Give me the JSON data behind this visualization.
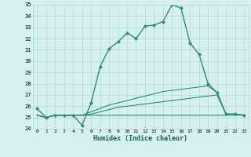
{
  "xlabel": "Humidex (Indice chaleur)",
  "x_hours": [
    0,
    1,
    2,
    3,
    4,
    5,
    6,
    7,
    8,
    9,
    10,
    11,
    12,
    13,
    14,
    15,
    16,
    17,
    18,
    19,
    20,
    21,
    22,
    23
  ],
  "line1": [
    25.8,
    25.0,
    25.2,
    25.2,
    25.2,
    24.3,
    26.3,
    29.5,
    31.1,
    31.7,
    32.5,
    32.0,
    33.1,
    33.2,
    33.5,
    35.0,
    34.7,
    31.6,
    30.6,
    28.0,
    27.2,
    25.3,
    25.3,
    25.2
  ],
  "line2": [
    25.2,
    25.0,
    25.2,
    25.2,
    25.2,
    25.2,
    25.5,
    25.8,
    26.1,
    26.3,
    26.5,
    26.7,
    26.9,
    27.1,
    27.3,
    27.4,
    27.5,
    27.6,
    27.7,
    27.8,
    27.2,
    25.3,
    25.3,
    25.2
  ],
  "line3": [
    25.2,
    25.0,
    25.2,
    25.2,
    25.2,
    25.2,
    25.3,
    25.5,
    25.7,
    25.9,
    26.0,
    26.1,
    26.2,
    26.3,
    26.4,
    26.5,
    26.6,
    26.7,
    26.8,
    26.9,
    27.0,
    25.3,
    25.3,
    25.2
  ],
  "line4": [
    25.2,
    25.0,
    25.2,
    25.2,
    25.2,
    25.2,
    25.2,
    25.2,
    25.2,
    25.2,
    25.2,
    25.2,
    25.2,
    25.2,
    25.2,
    25.2,
    25.2,
    25.2,
    25.2,
    25.2,
    25.2,
    25.2,
    25.2,
    25.2
  ],
  "color": "#2e8b74",
  "bg_color": "#d6f0ef",
  "grid_color": "#b0d8d6",
  "ylim": [
    24,
    35
  ],
  "yticks": [
    24,
    25,
    26,
    27,
    28,
    29,
    30,
    31,
    32,
    33,
    34,
    35
  ]
}
